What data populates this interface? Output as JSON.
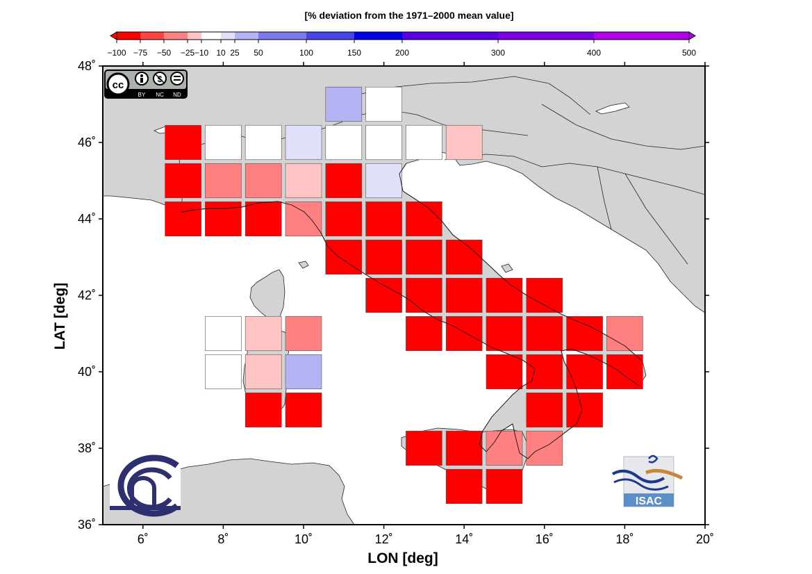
{
  "colorbar": {
    "title": "[% deviation from the 1971–2000 mean value]",
    "ticks": [
      "−100",
      "−75",
      "−50",
      "−25",
      "−10",
      "10",
      "25",
      "50",
      "100",
      "150",
      "200",
      "300",
      "400",
      "500"
    ],
    "tick_values": [
      -100,
      -75,
      -50,
      -25,
      -10,
      10,
      25,
      50,
      100,
      150,
      200,
      300,
      400,
      500
    ],
    "bins": [
      {
        "from": -100,
        "to": -75,
        "color": "#ff0000"
      },
      {
        "from": -75,
        "to": -50,
        "color": "#ff4444"
      },
      {
        "from": -50,
        "to": -25,
        "color": "#ff8080"
      },
      {
        "from": -25,
        "to": -10,
        "color": "#ffc4c4"
      },
      {
        "from": -10,
        "to": 10,
        "color": "#ffffff"
      },
      {
        "from": 10,
        "to": 25,
        "color": "#e0e0fb"
      },
      {
        "from": 25,
        "to": 50,
        "color": "#b4b4f5"
      },
      {
        "from": 50,
        "to": 100,
        "color": "#7a7aee"
      },
      {
        "from": 100,
        "to": 150,
        "color": "#4646e6"
      },
      {
        "from": 150,
        "to": 200,
        "color": "#0000e6"
      },
      {
        "from": 200,
        "to": 300,
        "color": "#5a00e0"
      },
      {
        "from": 300,
        "to": 400,
        "color": "#7c00e2"
      },
      {
        "from": 400,
        "to": 500,
        "color": "#b400e6"
      }
    ]
  },
  "map": {
    "xlabel": "LON [deg]",
    "ylabel": "LAT [deg]",
    "lon_ticks": [
      "6˚",
      "8˚",
      "10˚",
      "12˚",
      "14˚",
      "16˚",
      "18˚",
      "20˚"
    ],
    "lat_ticks": [
      "36˚",
      "38˚",
      "40˚",
      "42˚",
      "44˚",
      "46˚",
      "48˚"
    ],
    "lon_range": [
      5,
      20
    ],
    "lat_range": [
      36,
      48
    ],
    "land_color": "#d3d3d3",
    "sea_color": "#ffffff"
  },
  "chart_data": {
    "type": "heatmap",
    "title": "[% deviation from the 1971–2000 mean value]",
    "xlabel": "LON [deg]",
    "ylabel": "LAT [deg]",
    "cell_size_deg": 1,
    "cells": [
      {
        "lon": 11,
        "lat": 47,
        "value": 30
      },
      {
        "lon": 12,
        "lat": 47,
        "value": 0
      },
      {
        "lon": 7,
        "lat": 46,
        "value": -80
      },
      {
        "lon": 8,
        "lat": 46,
        "value": 0
      },
      {
        "lon": 9,
        "lat": 46,
        "value": 0
      },
      {
        "lon": 10,
        "lat": 46,
        "value": 15
      },
      {
        "lon": 11,
        "lat": 46,
        "value": 0
      },
      {
        "lon": 12,
        "lat": 46,
        "value": 0
      },
      {
        "lon": 13,
        "lat": 46,
        "value": 0
      },
      {
        "lon": 14,
        "lat": 46,
        "value": -20
      },
      {
        "lon": 7,
        "lat": 45,
        "value": -80
      },
      {
        "lon": 8,
        "lat": 45,
        "value": -40
      },
      {
        "lon": 9,
        "lat": 45,
        "value": -40
      },
      {
        "lon": 10,
        "lat": 45,
        "value": -20
      },
      {
        "lon": 11,
        "lat": 45,
        "value": -80
      },
      {
        "lon": 12,
        "lat": 45,
        "value": 15
      },
      {
        "lon": 7,
        "lat": 44,
        "value": -90
      },
      {
        "lon": 8,
        "lat": 44,
        "value": -90
      },
      {
        "lon": 9,
        "lat": 44,
        "value": -90
      },
      {
        "lon": 10,
        "lat": 44,
        "value": -40
      },
      {
        "lon": 11,
        "lat": 44,
        "value": -80
      },
      {
        "lon": 12,
        "lat": 44,
        "value": -80
      },
      {
        "lon": 13,
        "lat": 44,
        "value": -80
      },
      {
        "lon": 11,
        "lat": 43,
        "value": -80
      },
      {
        "lon": 12,
        "lat": 43,
        "value": -80
      },
      {
        "lon": 13,
        "lat": 43,
        "value": -80
      },
      {
        "lon": 14,
        "lat": 43,
        "value": -90
      },
      {
        "lon": 12,
        "lat": 42,
        "value": -90
      },
      {
        "lon": 13,
        "lat": 42,
        "value": -90
      },
      {
        "lon": 14,
        "lat": 42,
        "value": -90
      },
      {
        "lon": 15,
        "lat": 42,
        "value": -90
      },
      {
        "lon": 16,
        "lat": 42,
        "value": -90
      },
      {
        "lon": 8,
        "lat": 41,
        "value": 0
      },
      {
        "lon": 9,
        "lat": 41,
        "value": -20
      },
      {
        "lon": 10,
        "lat": 41,
        "value": -40
      },
      {
        "lon": 13,
        "lat": 41,
        "value": -90
      },
      {
        "lon": 14,
        "lat": 41,
        "value": -80
      },
      {
        "lon": 15,
        "lat": 41,
        "value": -90
      },
      {
        "lon": 16,
        "lat": 41,
        "value": -90
      },
      {
        "lon": 17,
        "lat": 41,
        "value": -90
      },
      {
        "lon": 18,
        "lat": 41,
        "value": -40
      },
      {
        "lon": 8,
        "lat": 40,
        "value": 0
      },
      {
        "lon": 9,
        "lat": 40,
        "value": -20
      },
      {
        "lon": 10,
        "lat": 40,
        "value": 30
      },
      {
        "lon": 15,
        "lat": 40,
        "value": -90
      },
      {
        "lon": 16,
        "lat": 40,
        "value": -80
      },
      {
        "lon": 17,
        "lat": 40,
        "value": -90
      },
      {
        "lon": 18,
        "lat": 40,
        "value": -90
      },
      {
        "lon": 9,
        "lat": 39,
        "value": -90
      },
      {
        "lon": 10,
        "lat": 39,
        "value": -90
      },
      {
        "lon": 16,
        "lat": 39,
        "value": -90
      },
      {
        "lon": 17,
        "lat": 39,
        "value": -80
      },
      {
        "lon": 13,
        "lat": 38,
        "value": -90
      },
      {
        "lon": 14,
        "lat": 38,
        "value": -90
      },
      {
        "lon": 15,
        "lat": 38,
        "value": -40
      },
      {
        "lon": 16,
        "lat": 38,
        "value": -40
      },
      {
        "lon": 14,
        "lat": 37,
        "value": -80
      },
      {
        "lon": 15,
        "lat": 37,
        "value": -80
      }
    ]
  },
  "logos": {
    "cc_badge": {
      "main": "cc",
      "labels": [
        "BY",
        "NC",
        "ND"
      ]
    },
    "isac": {
      "text": "ISAC",
      "wave_color": "#1d3a8a",
      "sun_color": "#c8883a",
      "box_color": "#5b8fc8"
    },
    "cnr": {
      "color": "#2e2f6e"
    }
  }
}
